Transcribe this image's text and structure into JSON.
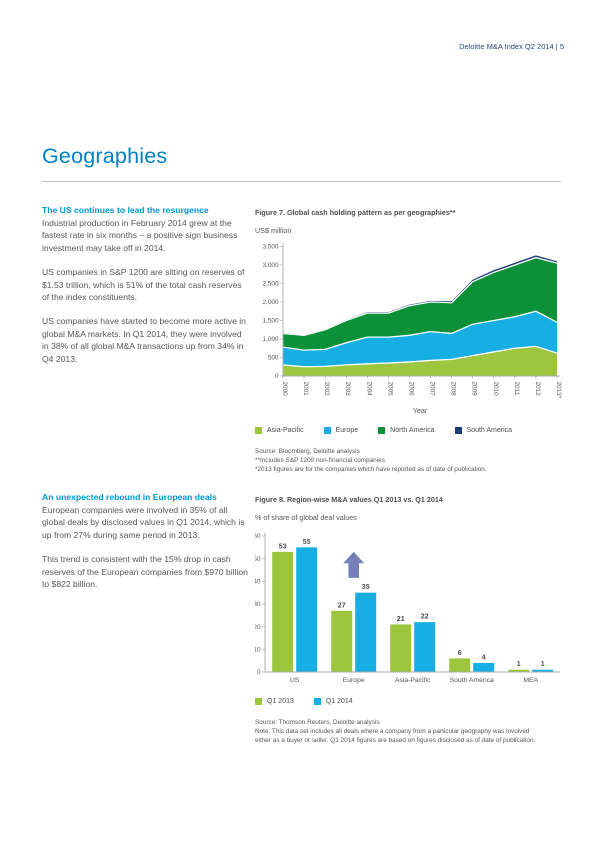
{
  "header": {
    "text": "Deloitte M&A Index Q2 2014 | 5"
  },
  "page_title": "Geographies",
  "colors": {
    "accent_heading_blue": "#0096d6",
    "title_blue": "#0082c6",
    "header_navy": "#2c4a7c",
    "body_gray": "#54575b",
    "green": "#9dc53e",
    "cyan": "#17afe3",
    "dark_green": "#0c9038",
    "dark_navy": "#1d3c77",
    "arrow_slate": "#7480b6"
  },
  "sections": [
    {
      "heading": "The US continues to lead the resurgence",
      "paragraphs": [
        "Industrial production in February 2014 grew at the fastest rate in six months – a positive sign business investment may take off in 2014.",
        "US companies in S&P 1200 are sitting on reserves of $1.53 trillion, which is 51% of the total cash reserves of the index constituents.",
        "US companies have started to become more active in global M&A markets. In Q1 2014, they were involved in 38% of all global M&A transactions up from 34% in Q4 2013."
      ]
    },
    {
      "heading": "An unexpected rebound in European deals",
      "paragraphs": [
        "European companies were involved in 35% of all global deals by disclosed values in Q1 2014, which is up from 27% during same period in 2013.",
        "This trend is consistent with the 15% drop in cash reserves of the European companies from $970 billion to $822 billion."
      ]
    }
  ],
  "chart_data": [
    {
      "type": "area",
      "stacked": true,
      "title": "Figure 7. Global cash holding pattern as per geographies**",
      "ylabel": "US$ million",
      "xlabel": "Year",
      "x": [
        "2000",
        "2001",
        "2002",
        "2003",
        "2004",
        "2005",
        "2006",
        "2007",
        "2008",
        "2009",
        "2010",
        "2011",
        "2012",
        "2013*"
      ],
      "series": [
        {
          "name": "Asia-Pacific",
          "color": "#9dc53e",
          "values": [
            300,
            250,
            260,
            300,
            330,
            350,
            380,
            420,
            450,
            550,
            650,
            750,
            800,
            620
          ]
        },
        {
          "name": "Europe",
          "color": "#17afe3",
          "values": [
            480,
            450,
            460,
            600,
            720,
            700,
            720,
            780,
            700,
            850,
            850,
            850,
            950,
            830
          ]
        },
        {
          "name": "North America",
          "color": "#0c9038",
          "values": [
            370,
            400,
            530,
            600,
            650,
            650,
            800,
            800,
            830,
            1150,
            1300,
            1400,
            1450,
            1600
          ]
        },
        {
          "name": "South America",
          "color": "#1d3c77",
          "values": [
            15,
            15,
            15,
            20,
            25,
            25,
            30,
            30,
            40,
            50,
            60,
            60,
            60,
            50
          ]
        }
      ],
      "ylim": [
        0,
        3500
      ],
      "ytick_step": 500,
      "ytick_labels": [
        "0",
        "500",
        "1,000",
        "1,500",
        "2,000",
        "2,500",
        "3,000",
        "3,500"
      ],
      "grid": false,
      "legend_position": "bottom",
      "source_lines": [
        "Source: Bloomberg, Deloitte analysis",
        "**Includes S&P 1200 non-financial companies",
        "*2013 figures are for the companies which have reported as of date of publication."
      ]
    },
    {
      "type": "bar",
      "title": "Figure 8. Region-wise M&A values Q1 2013 vs. Q1 2014",
      "ylabel": "% of share of global deal values",
      "categories": [
        "US",
        "Europe",
        "Asia-Pacific",
        "South America",
        "MEA"
      ],
      "series": [
        {
          "name": "Q1 2013",
          "color": "#9dc53e",
          "values": [
            53,
            27,
            21,
            6,
            1
          ]
        },
        {
          "name": "Q1 2014",
          "color": "#17afe3",
          "values": [
            55,
            35,
            22,
            4,
            1
          ]
        }
      ],
      "ylim": [
        0,
        60
      ],
      "ytick_step": 10,
      "ytick_labels": [
        "0",
        "10",
        "20",
        "30",
        "40",
        "50",
        "60"
      ],
      "data_labels": true,
      "grid": false,
      "legend_position": "bottom",
      "annotation": {
        "type": "up-arrow",
        "target": "Europe",
        "color": "#7480b6"
      },
      "source_lines": [
        "Source: Thomson Reuters, Deloitte analysis",
        "Note: This data set includes all deals where a company from a particular geography was involved",
        "either as a buyer or seller. Q1 2014 figures are based on figures disclosed as of date of publication."
      ]
    }
  ]
}
